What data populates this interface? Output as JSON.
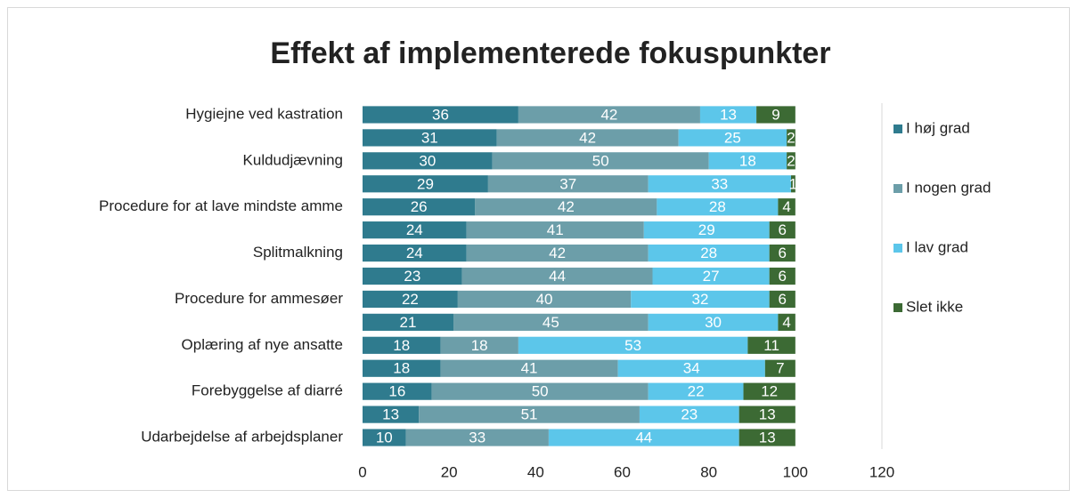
{
  "chart_data": {
    "type": "stacked_barh",
    "title": "Effekt af implementerede fokuspunkter",
    "categories": [
      "Hygiejne ved kastration",
      null,
      "Kuldudjævning",
      null,
      "Procedure for at lave mindste amme",
      null,
      "Splitmalkning",
      null,
      "Procedure for ammesøer",
      null,
      "Oplæring af nye ansatte",
      null,
      "Forebyggelse af diarré",
      null,
      "Udarbejdelse af arbejdsplaner"
    ],
    "series": [
      {
        "name": "I høj grad",
        "color": "#2f7b8e",
        "values": [
          36,
          31,
          30,
          29,
          26,
          24,
          24,
          23,
          22,
          21,
          18,
          18,
          16,
          13,
          10
        ]
      },
      {
        "name": "I nogen grad",
        "color": "#6c9ea9",
        "values": [
          42,
          42,
          50,
          37,
          42,
          41,
          42,
          44,
          40,
          45,
          18,
          41,
          50,
          51,
          33
        ]
      },
      {
        "name": "I lav grad",
        "color": "#5cc6ea",
        "values": [
          13,
          25,
          18,
          33,
          28,
          29,
          28,
          27,
          32,
          30,
          53,
          34,
          22,
          23,
          44
        ]
      },
      {
        "name": "Slet ikke",
        "color": "#3c6a34",
        "values": [
          9,
          2,
          2,
          1,
          4,
          6,
          6,
          6,
          6,
          4,
          11,
          7,
          12,
          13,
          13
        ]
      }
    ],
    "xlim": [
      0,
      120
    ],
    "xticks": [
      0,
      20,
      40,
      60,
      80,
      100,
      120
    ],
    "legend": "right"
  }
}
